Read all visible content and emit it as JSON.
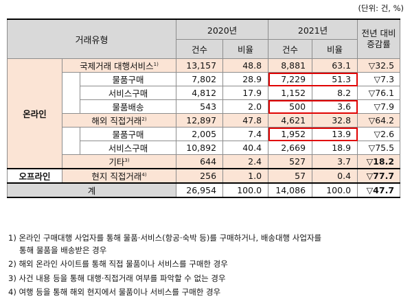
{
  "unit": "(단위: 건, %)",
  "header": {
    "type": "거래유형",
    "year2020": "2020년",
    "year2021": "2021년",
    "count": "건수",
    "ratio": "비율",
    "change": "전년 대비 증감률"
  },
  "rows": [
    {
      "label": "국제거래 대행서비스",
      "sup": "1)",
      "c2020": "13,157",
      "r2020": "48.8",
      "c2021": "8,881",
      "r2021": "63.1",
      "chg": "▽32.5"
    },
    {
      "label": "물품구매",
      "sup": "",
      "c2020": "7,802",
      "r2020": "28.9",
      "c2021": "7,229",
      "r2021": "51.3",
      "chg": "▽7.3"
    },
    {
      "label": "서비스구매",
      "sup": "",
      "c2020": "4,812",
      "r2020": "17.9",
      "c2021": "1,152",
      "r2021": "8.2",
      "chg": "▽76.1"
    },
    {
      "label": "물품배송",
      "sup": "",
      "c2020": "543",
      "r2020": "2.0",
      "c2021": "500",
      "r2021": "3.6",
      "chg": "▽7.9"
    },
    {
      "label": "해외 직접거래",
      "sup": "2)",
      "c2020": "12,897",
      "r2020": "47.8",
      "c2021": "4,621",
      "r2021": "32.8",
      "chg": "▽64.2"
    },
    {
      "label": "물품구매",
      "sup": "",
      "c2020": "2,005",
      "r2020": "7.4",
      "c2021": "1,952",
      "r2021": "13.9",
      "chg": "▽2.6"
    },
    {
      "label": "서비스구매",
      "sup": "",
      "c2020": "10,892",
      "r2020": "40.4",
      "c2021": "2,669",
      "r2021": "18.9",
      "chg": "▽75.5"
    },
    {
      "label": "기타",
      "sup": "3)",
      "c2020": "644",
      "r2020": "2.4",
      "c2021": "527",
      "r2021": "3.7",
      "chg": "▽18.2"
    },
    {
      "label": "현지 직접거래",
      "sup": "4)",
      "c2020": "256",
      "r2020": "1.0",
      "c2021": "57",
      "r2021": "0.4",
      "chg": "▽77.7"
    }
  ],
  "group_online": "온라인",
  "group_offline": "오프라인",
  "total": {
    "label": "계",
    "c2020": "26,954",
    "r2020": "100.0",
    "c2021": "14,086",
    "r2021": "100.0",
    "chg": "▽47.7"
  },
  "notes": [
    {
      "marker": "1)",
      "text": "온라인 구매대행 사업자를 통해 물품·서비스(항공·숙박 등)를 구매하거나, 배송대행 사업자를",
      "cont": "통해 물품을 배송받은 경우"
    },
    {
      "marker": "2)",
      "text": "해외 온라인 사이트를 통해 직접 물품이나 서비스를 구매한 경우",
      "cont": ""
    },
    {
      "marker": "3)",
      "text": "사건 내용 등을 통해 대행·직접거래 여부를 파악할 수 없는 경우",
      "cont": ""
    },
    {
      "marker": "4)",
      "text": "여행 등을 통해 해외 현지에서 물품이나 서비스를 구매한 경우",
      "cont": ""
    }
  ],
  "highlight_color": "#e00000",
  "peach_color": "#fbe4d5",
  "header_color": "#d9d9d9"
}
